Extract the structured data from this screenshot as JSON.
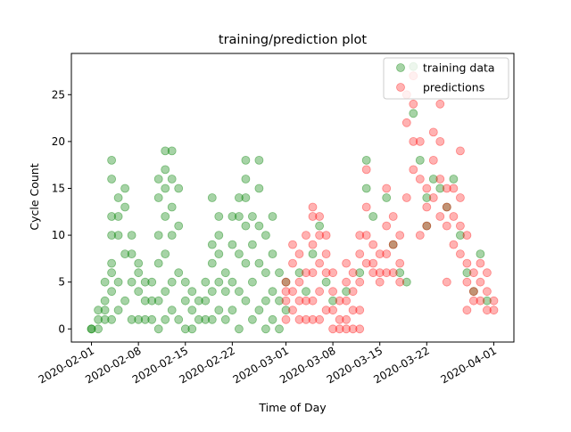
{
  "chart_data": {
    "type": "scatter",
    "title": "training/prediction plot",
    "xlabel": "Time of Day",
    "ylabel": "Cycle Count",
    "x_ticks": [
      "2020-02-01",
      "2020-02-08",
      "2020-02-15",
      "2020-02-22",
      "2020-03-01",
      "2020-03-08",
      "2020-03-15",
      "2020-03-22",
      "2020-04-01"
    ],
    "y_ticks": [
      0,
      5,
      10,
      15,
      20,
      25
    ],
    "xlim": [
      "2020-01-29",
      "2020-04-04"
    ],
    "ylim": [
      -1.4,
      29.4
    ],
    "grid": false,
    "legend_position": "top-right",
    "series": [
      {
        "name": "training data",
        "color": "#008000",
        "opacity": 0.35,
        "points": [
          [
            "2020-02-01",
            0
          ],
          [
            "2020-02-01",
            0
          ],
          [
            "2020-02-02",
            1
          ],
          [
            "2020-02-02",
            2
          ],
          [
            "2020-02-02",
            0
          ],
          [
            "2020-02-03",
            1
          ],
          [
            "2020-02-03",
            3
          ],
          [
            "2020-02-03",
            5
          ],
          [
            "2020-02-03",
            2
          ],
          [
            "2020-02-04",
            4
          ],
          [
            "2020-02-04",
            7
          ],
          [
            "2020-02-04",
            10
          ],
          [
            "2020-02-04",
            12
          ],
          [
            "2020-02-04",
            16
          ],
          [
            "2020-02-04",
            18
          ],
          [
            "2020-02-04",
            6
          ],
          [
            "2020-02-04",
            1
          ],
          [
            "2020-02-05",
            12
          ],
          [
            "2020-02-05",
            10
          ],
          [
            "2020-02-05",
            14
          ],
          [
            "2020-02-05",
            5
          ],
          [
            "2020-02-05",
            2
          ],
          [
            "2020-02-06",
            15
          ],
          [
            "2020-02-06",
            13
          ],
          [
            "2020-02-06",
            8
          ],
          [
            "2020-02-06",
            3
          ],
          [
            "2020-02-07",
            8
          ],
          [
            "2020-02-07",
            10
          ],
          [
            "2020-02-07",
            5
          ],
          [
            "2020-02-07",
            1
          ],
          [
            "2020-02-08",
            7
          ],
          [
            "2020-02-08",
            6
          ],
          [
            "2020-02-08",
            4
          ],
          [
            "2020-02-08",
            1
          ],
          [
            "2020-02-09",
            5
          ],
          [
            "2020-02-09",
            3
          ],
          [
            "2020-02-09",
            1
          ],
          [
            "2020-02-10",
            5
          ],
          [
            "2020-02-10",
            3
          ],
          [
            "2020-02-10",
            1
          ],
          [
            "2020-02-11",
            16
          ],
          [
            "2020-02-11",
            14
          ],
          [
            "2020-02-11",
            10
          ],
          [
            "2020-02-11",
            7
          ],
          [
            "2020-02-11",
            3
          ],
          [
            "2020-02-11",
            0
          ],
          [
            "2020-02-12",
            19
          ],
          [
            "2020-02-12",
            17
          ],
          [
            "2020-02-12",
            15
          ],
          [
            "2020-02-12",
            12
          ],
          [
            "2020-02-12",
            8
          ],
          [
            "2020-02-12",
            4
          ],
          [
            "2020-02-12",
            1
          ],
          [
            "2020-02-13",
            19
          ],
          [
            "2020-02-13",
            16
          ],
          [
            "2020-02-13",
            13
          ],
          [
            "2020-02-13",
            10
          ],
          [
            "2020-02-13",
            5
          ],
          [
            "2020-02-13",
            2
          ],
          [
            "2020-02-14",
            15
          ],
          [
            "2020-02-14",
            11
          ],
          [
            "2020-02-14",
            6
          ],
          [
            "2020-02-14",
            1
          ],
          [
            "2020-02-15",
            5
          ],
          [
            "2020-02-15",
            3
          ],
          [
            "2020-02-15",
            0
          ],
          [
            "2020-02-16",
            4
          ],
          [
            "2020-02-16",
            2
          ],
          [
            "2020-02-16",
            0
          ],
          [
            "2020-02-17",
            3
          ],
          [
            "2020-02-17",
            1
          ],
          [
            "2020-02-18",
            5
          ],
          [
            "2020-02-18",
            3
          ],
          [
            "2020-02-18",
            1
          ],
          [
            "2020-02-19",
            9
          ],
          [
            "2020-02-19",
            14
          ],
          [
            "2020-02-19",
            7
          ],
          [
            "2020-02-19",
            4
          ],
          [
            "2020-02-19",
            1
          ],
          [
            "2020-02-20",
            12
          ],
          [
            "2020-02-20",
            10
          ],
          [
            "2020-02-20",
            8
          ],
          [
            "2020-02-20",
            5
          ],
          [
            "2020-02-20",
            2
          ],
          [
            "2020-02-21",
            6
          ],
          [
            "2020-02-21",
            4
          ],
          [
            "2020-02-21",
            1
          ],
          [
            "2020-02-22",
            12
          ],
          [
            "2020-02-22",
            9
          ],
          [
            "2020-02-22",
            5
          ],
          [
            "2020-02-22",
            2
          ],
          [
            "2020-02-23",
            14
          ],
          [
            "2020-02-23",
            12
          ],
          [
            "2020-02-23",
            8
          ],
          [
            "2020-02-23",
            4
          ],
          [
            "2020-02-23",
            0
          ],
          [
            "2020-02-24",
            18
          ],
          [
            "2020-02-24",
            16
          ],
          [
            "2020-02-24",
            14
          ],
          [
            "2020-02-24",
            11
          ],
          [
            "2020-02-24",
            7
          ],
          [
            "2020-02-24",
            3
          ],
          [
            "2020-02-25",
            12
          ],
          [
            "2020-02-25",
            9
          ],
          [
            "2020-02-25",
            5
          ],
          [
            "2020-02-25",
            1
          ],
          [
            "2020-02-26",
            18
          ],
          [
            "2020-02-26",
            15
          ],
          [
            "2020-02-26",
            11
          ],
          [
            "2020-02-26",
            7
          ],
          [
            "2020-02-26",
            2
          ],
          [
            "2020-02-27",
            10
          ],
          [
            "2020-02-27",
            6
          ],
          [
            "2020-02-27",
            3
          ],
          [
            "2020-02-27",
            0
          ],
          [
            "2020-02-28",
            12
          ],
          [
            "2020-02-28",
            8
          ],
          [
            "2020-02-28",
            4
          ],
          [
            "2020-02-28",
            1
          ],
          [
            "2020-02-29",
            6
          ],
          [
            "2020-02-29",
            3
          ],
          [
            "2020-02-29",
            0
          ],
          [
            "2020-03-01",
            5
          ],
          [
            "2020-03-01",
            2
          ],
          [
            "2020-03-03",
            6
          ],
          [
            "2020-03-04",
            4
          ],
          [
            "2020-03-05",
            8
          ],
          [
            "2020-03-06",
            11
          ],
          [
            "2020-03-07",
            5
          ],
          [
            "2020-03-08",
            3
          ],
          [
            "2020-03-10",
            4
          ],
          [
            "2020-03-12",
            6
          ],
          [
            "2020-03-13",
            18
          ],
          [
            "2020-03-13",
            15
          ],
          [
            "2020-03-14",
            12
          ],
          [
            "2020-03-16",
            14
          ],
          [
            "2020-03-17",
            9
          ],
          [
            "2020-03-18",
            6
          ],
          [
            "2020-03-19",
            5
          ],
          [
            "2020-03-20",
            28
          ],
          [
            "2020-03-20",
            23
          ],
          [
            "2020-03-21",
            18
          ],
          [
            "2020-03-22",
            14
          ],
          [
            "2020-03-22",
            11
          ],
          [
            "2020-03-23",
            16
          ],
          [
            "2020-03-24",
            15
          ],
          [
            "2020-03-25",
            13
          ],
          [
            "2020-03-26",
            16
          ],
          [
            "2020-03-27",
            10
          ],
          [
            "2020-03-28",
            6
          ],
          [
            "2020-03-29",
            4
          ],
          [
            "2020-03-30",
            8
          ],
          [
            "2020-03-31",
            3
          ]
        ]
      },
      {
        "name": "predictions",
        "color": "#ff0000",
        "opacity": 0.3,
        "points": [
          [
            "2020-03-01",
            5
          ],
          [
            "2020-03-01",
            3
          ],
          [
            "2020-03-01",
            1
          ],
          [
            "2020-03-01",
            4
          ],
          [
            "2020-03-02",
            9
          ],
          [
            "2020-03-02",
            7
          ],
          [
            "2020-03-02",
            2
          ],
          [
            "2020-03-02",
            4
          ],
          [
            "2020-03-03",
            8
          ],
          [
            "2020-03-03",
            5
          ],
          [
            "2020-03-03",
            3
          ],
          [
            "2020-03-03",
            1
          ],
          [
            "2020-03-04",
            10
          ],
          [
            "2020-03-04",
            6
          ],
          [
            "2020-03-04",
            3
          ],
          [
            "2020-03-04",
            1
          ],
          [
            "2020-03-05",
            13
          ],
          [
            "2020-03-05",
            12
          ],
          [
            "2020-03-05",
            9
          ],
          [
            "2020-03-05",
            6
          ],
          [
            "2020-03-05",
            3
          ],
          [
            "2020-03-05",
            1
          ],
          [
            "2020-03-06",
            12
          ],
          [
            "2020-03-06",
            10
          ],
          [
            "2020-03-06",
            7
          ],
          [
            "2020-03-06",
            4
          ],
          [
            "2020-03-06",
            1
          ],
          [
            "2020-03-07",
            10
          ],
          [
            "2020-03-07",
            8
          ],
          [
            "2020-03-07",
            6
          ],
          [
            "2020-03-07",
            2
          ],
          [
            "2020-03-08",
            6
          ],
          [
            "2020-03-08",
            4
          ],
          [
            "2020-03-08",
            2
          ],
          [
            "2020-03-08",
            0
          ],
          [
            "2020-03-09",
            3
          ],
          [
            "2020-03-09",
            1
          ],
          [
            "2020-03-09",
            0
          ],
          [
            "2020-03-10",
            7
          ],
          [
            "2020-03-10",
            5
          ],
          [
            "2020-03-10",
            3
          ],
          [
            "2020-03-10",
            1
          ],
          [
            "2020-03-10",
            0
          ],
          [
            "2020-03-11",
            6
          ],
          [
            "2020-03-11",
            4
          ],
          [
            "2020-03-11",
            2
          ],
          [
            "2020-03-11",
            0
          ],
          [
            "2020-03-12",
            10
          ],
          [
            "2020-03-12",
            8
          ],
          [
            "2020-03-12",
            5
          ],
          [
            "2020-03-12",
            2
          ],
          [
            "2020-03-12",
            0
          ],
          [
            "2020-03-13",
            17
          ],
          [
            "2020-03-13",
            13
          ],
          [
            "2020-03-13",
            10
          ],
          [
            "2020-03-13",
            7
          ],
          [
            "2020-03-14",
            9
          ],
          [
            "2020-03-14",
            7
          ],
          [
            "2020-03-14",
            6
          ],
          [
            "2020-03-15",
            8
          ],
          [
            "2020-03-15",
            6
          ],
          [
            "2020-03-15",
            5
          ],
          [
            "2020-03-16",
            15
          ],
          [
            "2020-03-16",
            11
          ],
          [
            "2020-03-16",
            8
          ],
          [
            "2020-03-16",
            6
          ],
          [
            "2020-03-17",
            12
          ],
          [
            "2020-03-17",
            9
          ],
          [
            "2020-03-17",
            6
          ],
          [
            "2020-03-18",
            10
          ],
          [
            "2020-03-18",
            7
          ],
          [
            "2020-03-18",
            5
          ],
          [
            "2020-03-19",
            25
          ],
          [
            "2020-03-19",
            22
          ],
          [
            "2020-03-19",
            14
          ],
          [
            "2020-03-20",
            27
          ],
          [
            "2020-03-20",
            24
          ],
          [
            "2020-03-20",
            20
          ],
          [
            "2020-03-20",
            17
          ],
          [
            "2020-03-21",
            20
          ],
          [
            "2020-03-21",
            16
          ],
          [
            "2020-03-21",
            10
          ],
          [
            "2020-03-22",
            15
          ],
          [
            "2020-03-22",
            13
          ],
          [
            "2020-03-22",
            11
          ],
          [
            "2020-03-23",
            21
          ],
          [
            "2020-03-23",
            18
          ],
          [
            "2020-03-23",
            14
          ],
          [
            "2020-03-24",
            24
          ],
          [
            "2020-03-24",
            20
          ],
          [
            "2020-03-24",
            16
          ],
          [
            "2020-03-24",
            12
          ],
          [
            "2020-03-25",
            15
          ],
          [
            "2020-03-25",
            13
          ],
          [
            "2020-03-25",
            11
          ],
          [
            "2020-03-25",
            5
          ],
          [
            "2020-03-26",
            15
          ],
          [
            "2020-03-26",
            12
          ],
          [
            "2020-03-26",
            9
          ],
          [
            "2020-03-27",
            19
          ],
          [
            "2020-03-27",
            14
          ],
          [
            "2020-03-27",
            11
          ],
          [
            "2020-03-27",
            8
          ],
          [
            "2020-03-28",
            10
          ],
          [
            "2020-03-28",
            7
          ],
          [
            "2020-03-28",
            5
          ],
          [
            "2020-03-28",
            2
          ],
          [
            "2020-03-29",
            6
          ],
          [
            "2020-03-29",
            4
          ],
          [
            "2020-03-29",
            3
          ],
          [
            "2020-03-30",
            7
          ],
          [
            "2020-03-30",
            5
          ],
          [
            "2020-03-30",
            3
          ],
          [
            "2020-03-31",
            6
          ],
          [
            "2020-03-31",
            4
          ],
          [
            "2020-03-31",
            2
          ],
          [
            "2020-04-01",
            3
          ],
          [
            "2020-04-01",
            2
          ]
        ]
      }
    ]
  }
}
